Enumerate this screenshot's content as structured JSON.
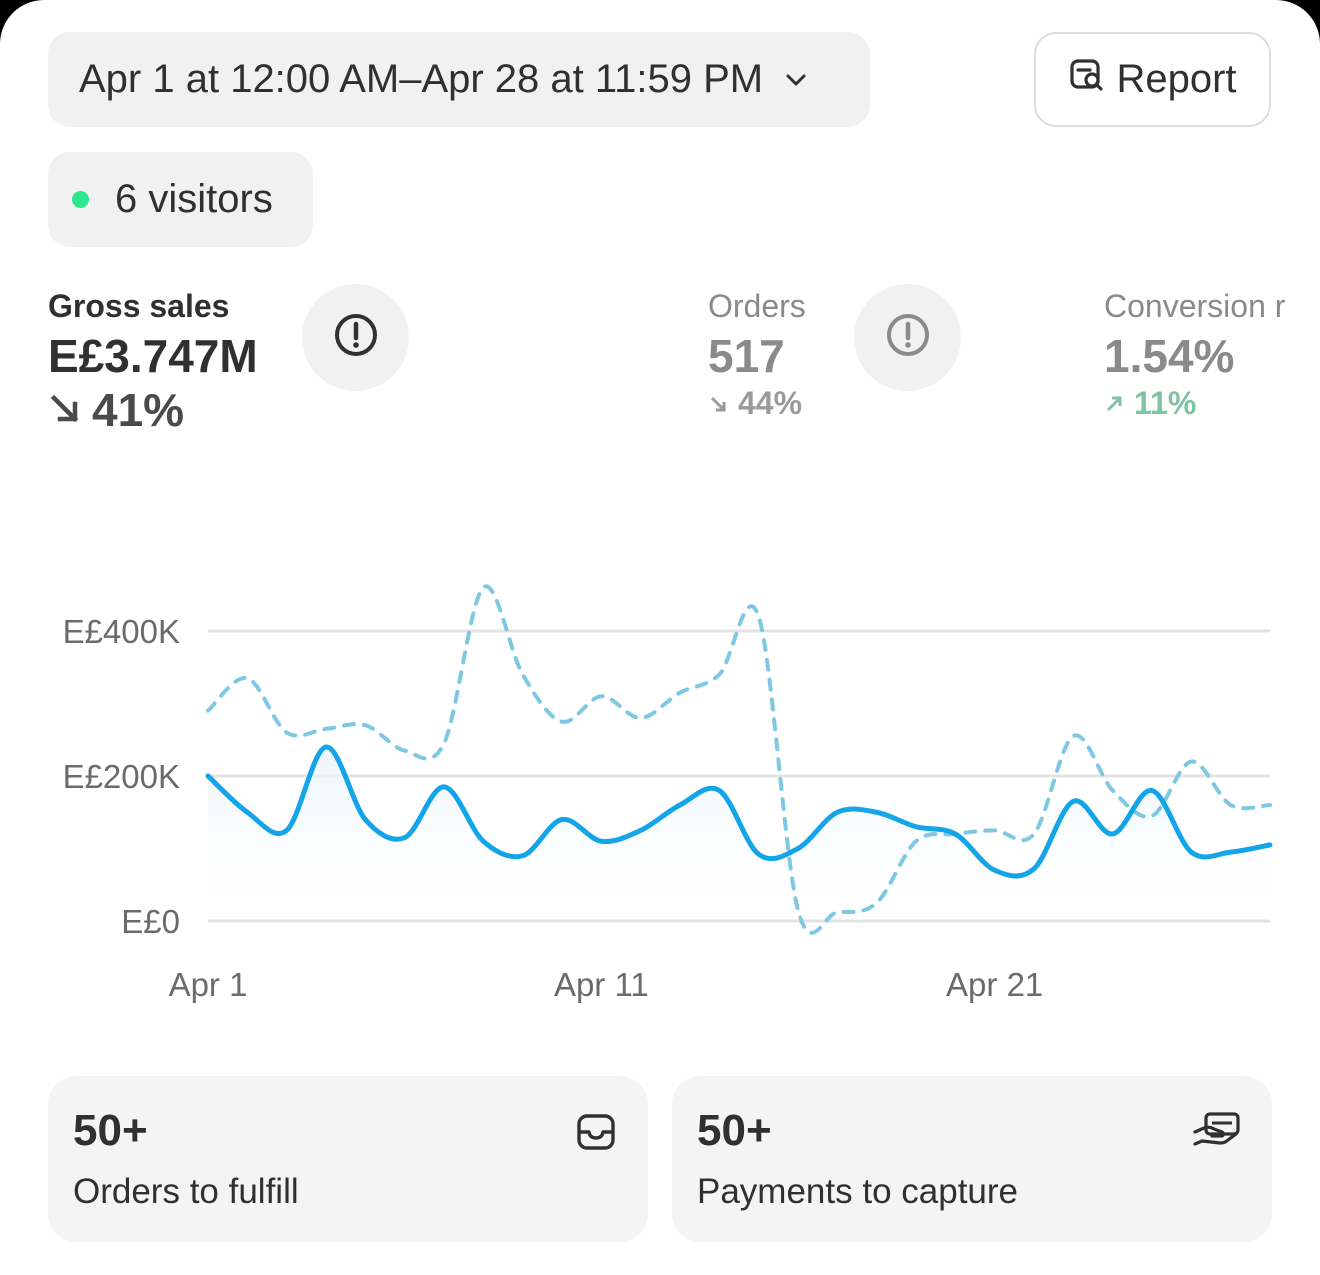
{
  "header": {
    "date_range": "Apr 1 at 12:00 AM–Apr 28 at 11:59 PM",
    "report_label": "Report"
  },
  "visitors": {
    "label": "6 visitors",
    "status_color": "#2ee68f"
  },
  "metrics": [
    {
      "label": "Gross sales",
      "value": "E£3.747M",
      "change": "41%",
      "direction": "down"
    },
    {
      "label": "Orders",
      "value": "517",
      "change": "44%",
      "direction": "down"
    },
    {
      "label": "Conversion r",
      "value": "1.54%",
      "change": "11%",
      "direction": "up"
    }
  ],
  "chart_data": {
    "type": "line",
    "x_tick_labels": [
      "Apr 1",
      "Apr 11",
      "Apr 21"
    ],
    "y_tick_labels": [
      "E£0",
      "E£200K",
      "E£400K"
    ],
    "ylim": [
      0,
      400000
    ],
    "x": [
      1,
      2,
      3,
      4,
      5,
      6,
      7,
      8,
      9,
      10,
      11,
      12,
      13,
      14,
      15,
      16,
      17,
      18,
      19,
      20,
      21,
      22,
      23,
      24,
      25,
      26,
      27,
      28
    ],
    "series": [
      {
        "style": "solid",
        "color": "#13a5e8",
        "values": [
          200000,
          150000,
          125000,
          240000,
          140000,
          115000,
          185000,
          110000,
          90000,
          140000,
          110000,
          125000,
          160000,
          180000,
          92000,
          100000,
          150000,
          150000,
          130000,
          120000,
          70000,
          72000,
          165000,
          120000,
          180000,
          95000,
          95000,
          105000
        ]
      },
      {
        "style": "dashed",
        "color": "#7ec8e3",
        "values": [
          290000,
          335000,
          260000,
          265000,
          270000,
          235000,
          245000,
          460000,
          340000,
          275000,
          310000,
          280000,
          315000,
          340000,
          420000,
          15000,
          12000,
          25000,
          110000,
          120000,
          125000,
          120000,
          255000,
          180000,
          145000,
          220000,
          160000,
          160000
        ]
      }
    ],
    "grid": true
  },
  "cards": [
    {
      "count": "50+",
      "title": "Orders to fulfill",
      "icon": "inbox-icon"
    },
    {
      "count": "50+",
      "title": "Payments to capture",
      "icon": "hand-money-icon"
    }
  ]
}
